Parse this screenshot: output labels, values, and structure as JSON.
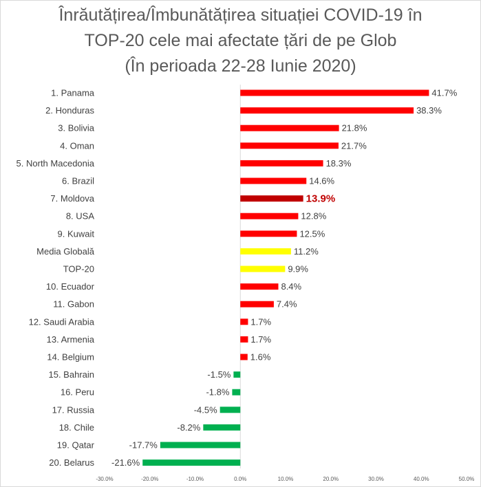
{
  "chart_data": {
    "type": "bar",
    "orientation": "horizontal",
    "title_lines": [
      "Înrăutățirea/Îmbunătățirea situației COVID-19 în",
      "TOP-20 cele mai afectate țări de pe Glob",
      "(În perioada 22-28 Iunie 2020)"
    ],
    "categories": [
      "1. Panama",
      "2. Honduras",
      "3. Bolivia",
      "4. Oman",
      "5. North Macedonia",
      "6. Brazil",
      "7. Moldova",
      "8. USA",
      "9. Kuwait",
      "Media Globală",
      "TOP-20",
      "10. Ecuador",
      "11. Gabon",
      "12. Saudi Arabia",
      "13. Armenia",
      "14. Belgium",
      "15. Bahrain",
      "16. Peru",
      "17. Russia",
      "18. Chile",
      "19. Qatar",
      "20. Belarus"
    ],
    "values": [
      41.7,
      38.3,
      21.8,
      21.7,
      18.3,
      14.6,
      13.9,
      12.8,
      12.5,
      11.2,
      9.9,
      8.4,
      7.4,
      1.7,
      1.7,
      1.6,
      -1.5,
      -1.8,
      -4.5,
      -8.2,
      -17.7,
      -21.6
    ],
    "value_labels": [
      "41.7%",
      "38.3%",
      "21.8%",
      "21.7%",
      "18.3%",
      "14.6%",
      "13.9%",
      "12.8%",
      "12.5%",
      "11.2%",
      "9.9%",
      "8.4%",
      "7.4%",
      "1.7%",
      "1.7%",
      "1.6%",
      "-1.5%",
      "-1.8%",
      "-4.5%",
      "-8.2%",
      "-17.7%",
      "-21.6%"
    ],
    "bar_groups": [
      "up",
      "up",
      "up",
      "up",
      "up",
      "up",
      "highlight",
      "up",
      "up",
      "average",
      "average",
      "up",
      "up",
      "up",
      "up",
      "up",
      "down",
      "down",
      "down",
      "down",
      "down",
      "down"
    ],
    "colors": {
      "up": "#ff0000",
      "highlight": "#c00000",
      "average": "#ffff00",
      "down": "#00b050"
    },
    "highlight_index": 6,
    "xlim": [
      -30,
      50
    ],
    "x_ticks": [
      -30,
      -20,
      -10,
      0,
      10,
      20,
      30,
      40,
      50
    ],
    "x_tick_labels": [
      "-30.0%",
      "-20.0%",
      "-10.0%",
      "0.0%",
      "10.0%",
      "20.0%",
      "30.0%",
      "40.0%",
      "50.0%"
    ],
    "xlabel": "",
    "ylabel": "",
    "grid": false,
    "legend": "none"
  }
}
